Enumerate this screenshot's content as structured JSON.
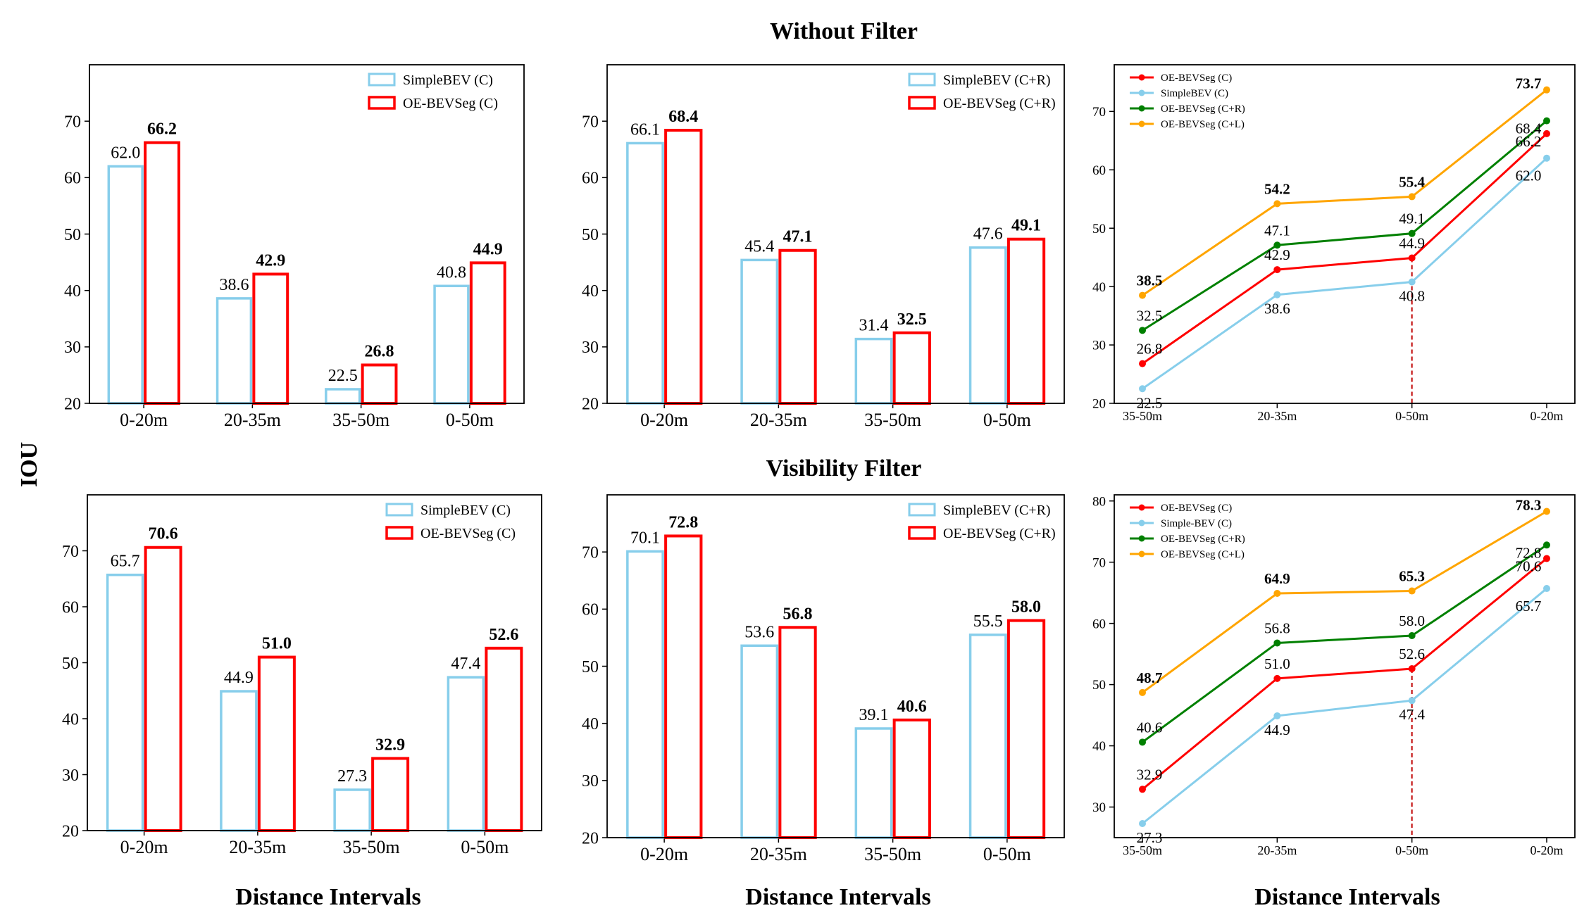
{
  "figure": {
    "ylabel": "IOU",
    "row_titles": [
      "Without Filter",
      "Visibility Filter"
    ],
    "xlabels": [
      "Distance Intervals",
      "Distance Intervals",
      "Distance Intervals"
    ]
  },
  "colors": {
    "simple": "#87CEEB",
    "oe": "#FF0000",
    "oe_cr": "#008000",
    "oe_cl": "#FFA500"
  },
  "chart_data": [
    {
      "type": "bar",
      "row": "Without Filter",
      "column": 1,
      "categories": [
        "0-20m",
        "20-35m",
        "35-50m",
        "0-50m"
      ],
      "ylim": [
        20,
        80
      ],
      "yticks": [
        20,
        30,
        40,
        50,
        60,
        70
      ],
      "series": [
        {
          "name": "SimpleBEV (C)",
          "values": [
            62.0,
            38.6,
            22.5,
            40.8
          ],
          "labels": [
            "62.0",
            "38.6",
            "22.5",
            "40.8"
          ]
        },
        {
          "name": "OE-BEVSeg (C)",
          "values": [
            66.2,
            42.9,
            26.8,
            44.9
          ],
          "labels": [
            "66.2",
            "42.9",
            "26.8",
            "44.9"
          ]
        }
      ],
      "legend": "top-right"
    },
    {
      "type": "bar",
      "row": "Without Filter",
      "column": 2,
      "categories": [
        "0-20m",
        "20-35m",
        "35-50m",
        "0-50m"
      ],
      "ylim": [
        20,
        80
      ],
      "yticks": [
        20,
        30,
        40,
        50,
        60,
        70
      ],
      "series": [
        {
          "name": "SimpleBEV (C+R)",
          "values": [
            66.1,
            45.4,
            31.4,
            47.6
          ],
          "labels": [
            "66.1",
            "45.4",
            "31.4",
            "47.6"
          ]
        },
        {
          "name": "OE-BEVSeg (C+R)",
          "values": [
            68.4,
            47.1,
            32.5,
            49.1
          ],
          "labels": [
            "68.4",
            "47.1",
            "32.5",
            "49.1"
          ]
        }
      ],
      "legend": "top-right"
    },
    {
      "type": "line",
      "row": "Without Filter",
      "column": 3,
      "categories": [
        "35-50m",
        "20-35m",
        "0-50m",
        "0-20m"
      ],
      "ylim": [
        20,
        78
      ],
      "yticks": [
        20,
        30,
        40,
        50,
        60,
        70
      ],
      "marker_line_at": "0-50m",
      "series": [
        {
          "name": "OE-BEVSeg (C)",
          "values": [
            26.8,
            42.9,
            44.9,
            66.2
          ],
          "labels": [
            "26.8",
            "42.9",
            "44.9",
            "66.2"
          ]
        },
        {
          "name": "SimpleBEV (C)",
          "values": [
            22.5,
            38.6,
            40.8,
            62.0
          ],
          "labels": [
            "22.5",
            "38.6",
            "40.8",
            "62.0"
          ]
        },
        {
          "name": "OE-BEVSeg (C+R)",
          "values": [
            32.5,
            47.1,
            49.1,
            68.4
          ],
          "labels": [
            "32.5",
            "47.1",
            "49.1",
            "68.4"
          ]
        },
        {
          "name": "OE-BEVSeg (C+L)",
          "values": [
            38.5,
            54.2,
            55.4,
            73.7
          ],
          "labels": [
            "38.5",
            "54.2",
            "55.4",
            "73.7"
          ]
        }
      ],
      "legend": "top-left"
    },
    {
      "type": "bar",
      "row": "Visibility Filter",
      "column": 1,
      "categories": [
        "0-20m",
        "20-35m",
        "35-50m",
        "0-50m"
      ],
      "ylim": [
        20,
        80
      ],
      "yticks": [
        20,
        30,
        40,
        50,
        60,
        70
      ],
      "series": [
        {
          "name": "SimpleBEV (C)",
          "values": [
            65.7,
            44.9,
            27.3,
            47.4
          ],
          "labels": [
            "65.7",
            "44.9",
            "27.3",
            "47.4"
          ]
        },
        {
          "name": "OE-BEVSeg (C)",
          "values": [
            70.6,
            51.0,
            32.9,
            52.6
          ],
          "labels": [
            "70.6",
            "51.0",
            "32.9",
            "52.6"
          ]
        }
      ],
      "legend": "top-right"
    },
    {
      "type": "bar",
      "row": "Visibility Filter",
      "column": 2,
      "categories": [
        "0-20m",
        "20-35m",
        "35-50m",
        "0-50m"
      ],
      "ylim": [
        20,
        80
      ],
      "yticks": [
        20,
        30,
        40,
        50,
        60,
        70
      ],
      "series": [
        {
          "name": "SimpleBEV (C+R)",
          "values": [
            70.1,
            53.6,
            39.1,
            55.5
          ],
          "labels": [
            "70.1",
            "53.6",
            "39.1",
            "55.5"
          ]
        },
        {
          "name": "OE-BEVSeg (C+R)",
          "values": [
            72.8,
            56.8,
            40.6,
            58.0
          ],
          "labels": [
            "72.8",
            "56.8",
            "40.6",
            "58.0"
          ]
        }
      ],
      "legend": "top-right"
    },
    {
      "type": "line",
      "row": "Visibility Filter",
      "column": 3,
      "categories": [
        "35-50m",
        "20-35m",
        "0-50m",
        "0-20m"
      ],
      "ylim": [
        25,
        81
      ],
      "yticks": [
        30,
        40,
        50,
        60,
        70,
        80
      ],
      "marker_line_at": "0-50m",
      "series": [
        {
          "name": "OE-BEVSeg (C)",
          "values": [
            32.9,
            51.0,
            52.6,
            70.6
          ],
          "labels": [
            "32.9",
            "51.0",
            "52.6",
            "70.6"
          ]
        },
        {
          "name": "Simple-BEV (C)",
          "values": [
            27.3,
            44.9,
            47.4,
            65.7
          ],
          "labels": [
            "27.3",
            "44.9",
            "47.4",
            "65.7"
          ]
        },
        {
          "name": "OE-BEVSeg (C+R)",
          "values": [
            40.6,
            56.8,
            58.0,
            72.8
          ],
          "labels": [
            "40.6",
            "56.8",
            "58.0",
            "72.8"
          ]
        },
        {
          "name": "OE-BEVSeg (C+L)",
          "values": [
            48.7,
            64.9,
            65.3,
            78.3
          ],
          "labels": [
            "48.7",
            "64.9",
            "65.3",
            "78.3"
          ]
        }
      ],
      "legend": "top-left"
    }
  ]
}
